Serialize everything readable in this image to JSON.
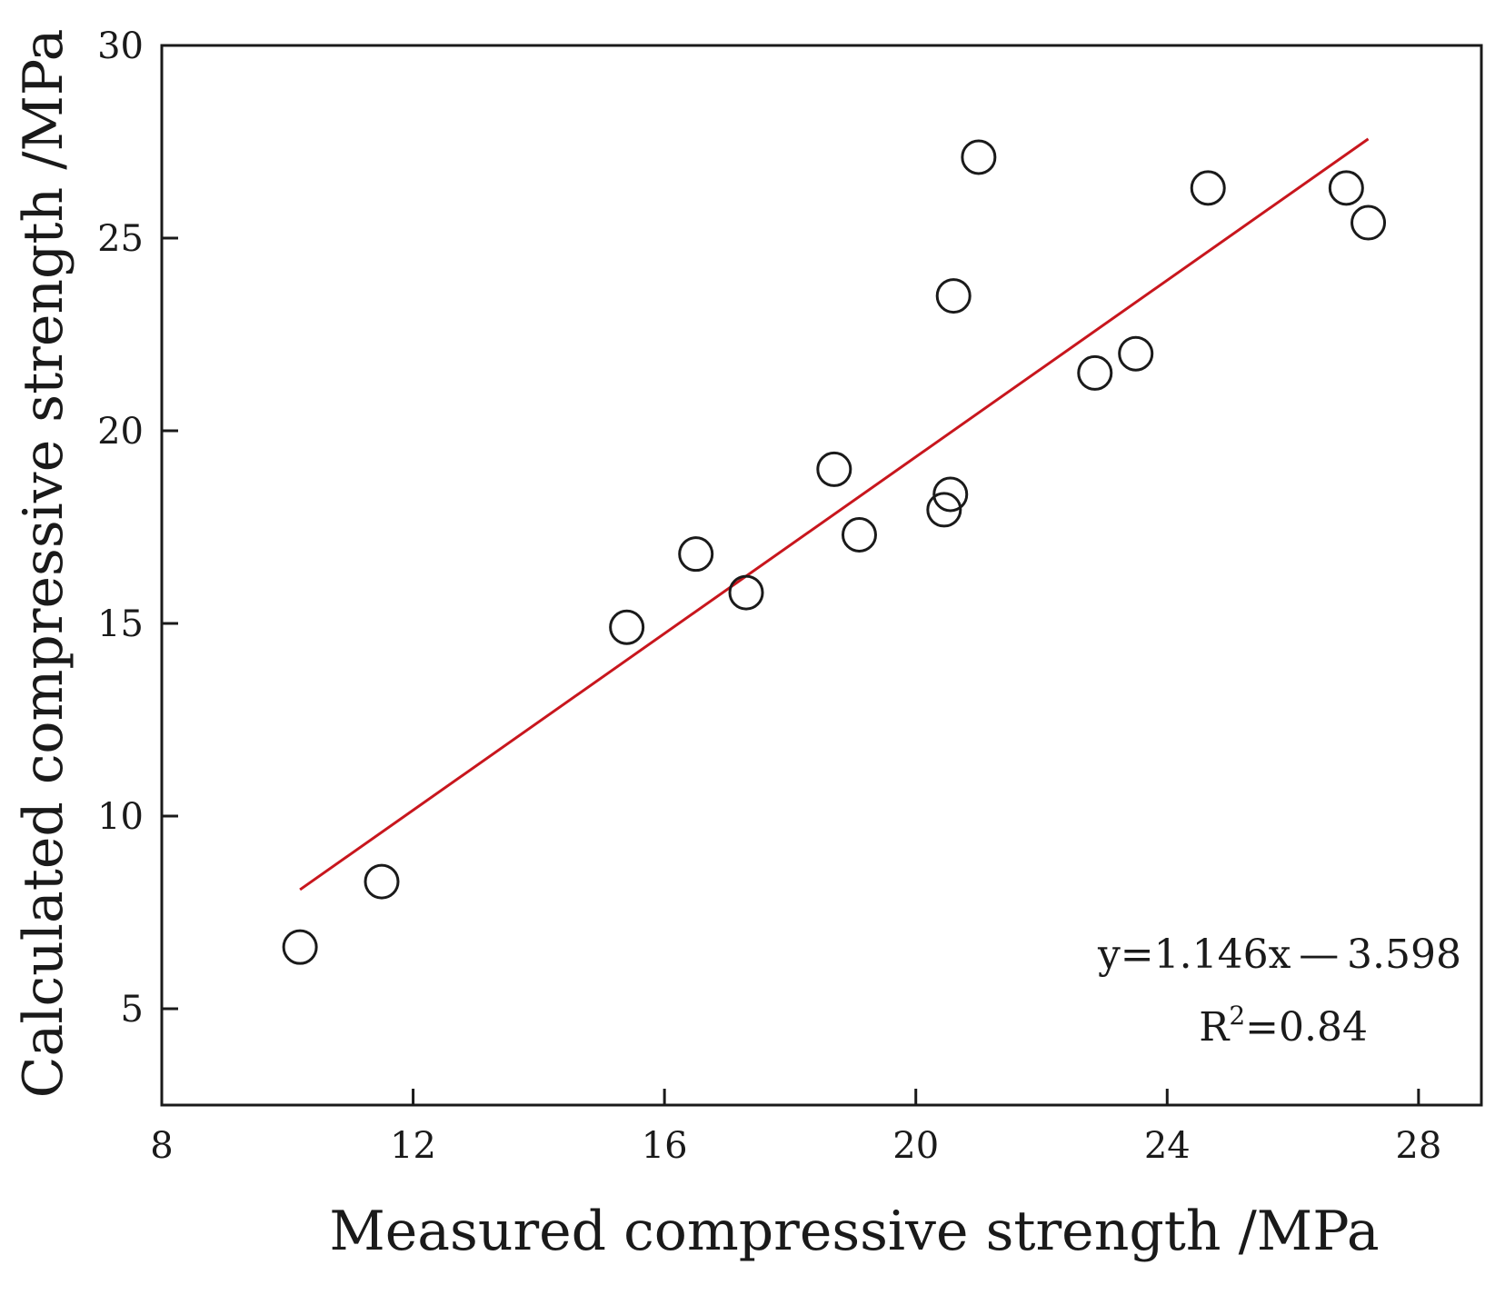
{
  "chart_data": {
    "type": "scatter",
    "title": "",
    "xlabel": "Measured compressive strength /MPa",
    "ylabel": "Calculated compressive strength /MPa",
    "xlim": [
      8,
      29
    ],
    "ylim": [
      2.5,
      30
    ],
    "x_ticks": [
      8,
      12,
      16,
      20,
      24,
      28
    ],
    "y_ticks": [
      5,
      10,
      15,
      20,
      25,
      30
    ],
    "x_tick_labels": [
      "8",
      "12",
      "16",
      "20",
      "24",
      "28"
    ],
    "y_tick_labels": [
      "5",
      "10",
      "15",
      "20",
      "25",
      "30"
    ],
    "grid": false,
    "legend": "none",
    "points": [
      {
        "x": 10.2,
        "y": 6.6
      },
      {
        "x": 11.5,
        "y": 8.3
      },
      {
        "x": 15.4,
        "y": 14.9
      },
      {
        "x": 16.5,
        "y": 16.8
      },
      {
        "x": 17.3,
        "y": 15.8
      },
      {
        "x": 18.7,
        "y": 19.0
      },
      {
        "x": 19.1,
        "y": 17.3
      },
      {
        "x": 20.45,
        "y": 17.95
      },
      {
        "x": 20.55,
        "y": 18.35
      },
      {
        "x": 20.6,
        "y": 23.5
      },
      {
        "x": 21.0,
        "y": 27.1
      },
      {
        "x": 22.85,
        "y": 21.5
      },
      {
        "x": 23.5,
        "y": 22.0
      },
      {
        "x": 24.65,
        "y": 26.3
      },
      {
        "x": 26.85,
        "y": 26.3
      },
      {
        "x": 27.2,
        "y": 25.4
      }
    ],
    "fit_line": {
      "slope": 1.146,
      "intercept": -3.598,
      "x_range": [
        10.2,
        27.2
      ]
    },
    "marker_style": "hollow-circle",
    "colors": {
      "points": "#1a1a1a",
      "fit_line": "#c8161d",
      "axes": "#1a1a1a"
    },
    "annotation": {
      "equation_text": "y=1.146x — 3.598",
      "r2_prefix": "R",
      "r2_superscript": "2",
      "r2_suffix": "=0.84"
    }
  }
}
